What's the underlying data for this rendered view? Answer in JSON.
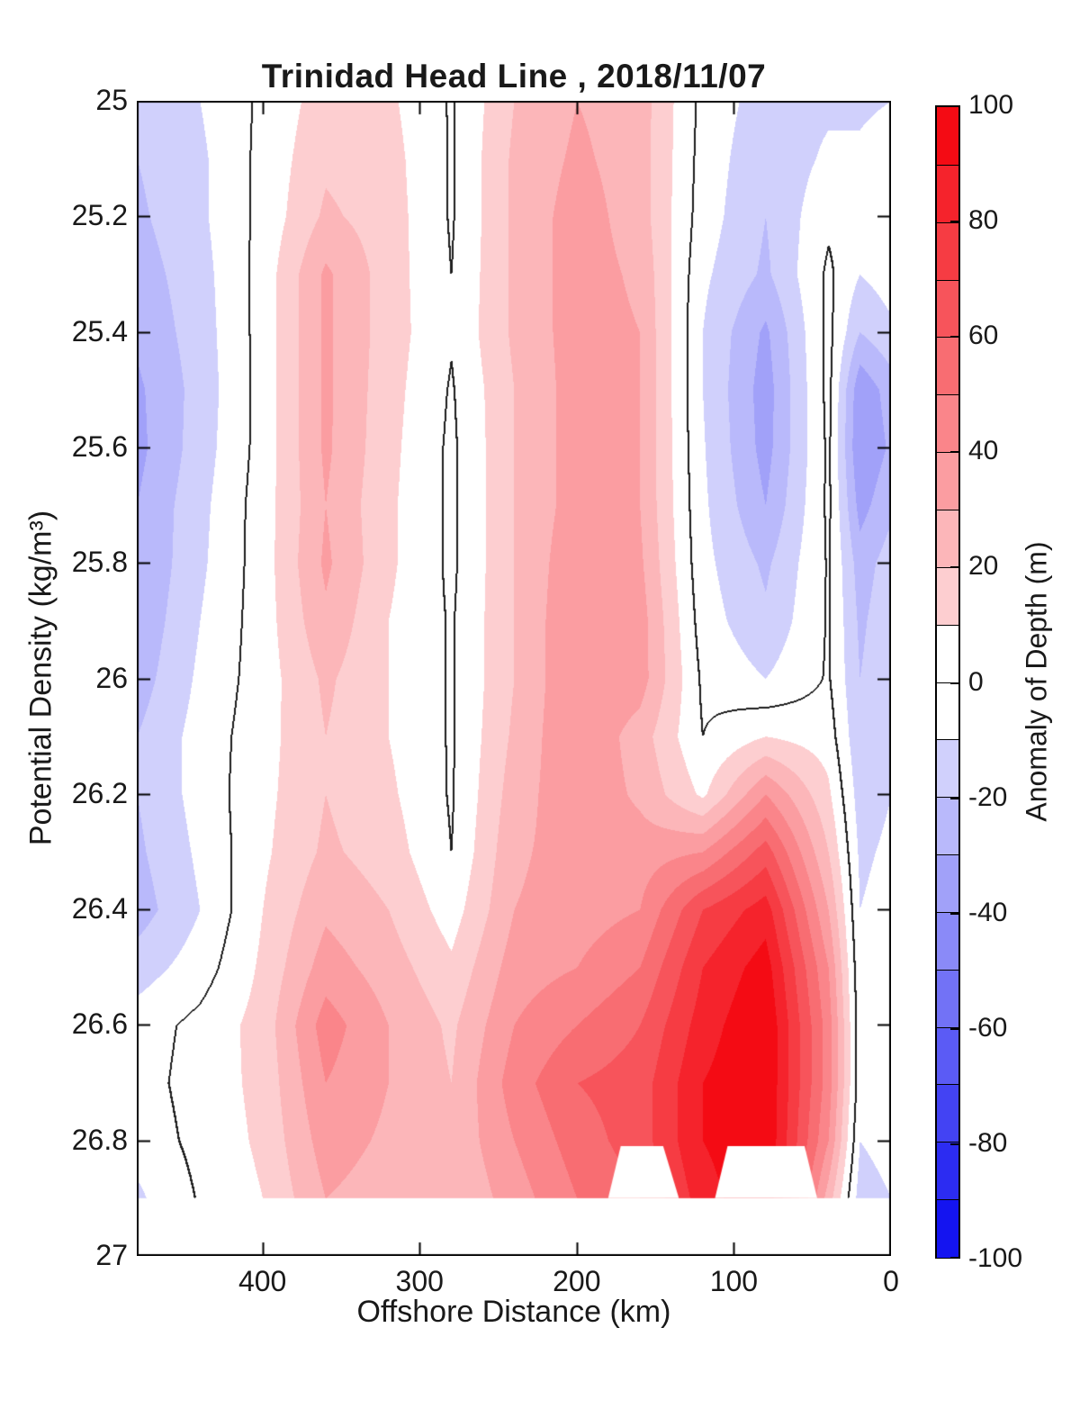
{
  "chart": {
    "title": "Trinidad Head Line , 2018/11/07",
    "x_axis": {
      "label": "Offshore Distance (km)",
      "min": 0,
      "max": 480,
      "reversed": true,
      "ticks": [
        {
          "value": 400,
          "label": "400"
        },
        {
          "value": 300,
          "label": "300"
        },
        {
          "value": 200,
          "label": "200"
        },
        {
          "value": 100,
          "label": "100"
        },
        {
          "value": 0,
          "label": "0"
        }
      ]
    },
    "y_axis": {
      "label": "Potential Density (kg/m³)",
      "min": 25,
      "max": 27,
      "increasing_downward": true,
      "ticks": [
        {
          "value": 25,
          "label": "25"
        },
        {
          "value": 25.2,
          "label": "25.2"
        },
        {
          "value": 25.4,
          "label": "25.4"
        },
        {
          "value": 25.6,
          "label": "25.6"
        },
        {
          "value": 25.8,
          "label": "25.8"
        },
        {
          "value": 26,
          "label": "26"
        },
        {
          "value": 26.2,
          "label": "26.2"
        },
        {
          "value": 26.4,
          "label": "26.4"
        },
        {
          "value": 26.6,
          "label": "26.6"
        },
        {
          "value": 26.8,
          "label": "26.8"
        },
        {
          "value": 27,
          "label": "27"
        }
      ]
    },
    "colorbar": {
      "label": "Anomaly of Depth (m)",
      "min": -100,
      "max": 100,
      "segment_step": 10,
      "positive_color": "#f40b14",
      "negative_color": "#1414f0",
      "zero_band_color": "#ffffff",
      "ticks": [
        {
          "value": 100,
          "label": "100"
        },
        {
          "value": 80,
          "label": "80"
        },
        {
          "value": 60,
          "label": "60"
        },
        {
          "value": 40,
          "label": "40"
        },
        {
          "value": 20,
          "label": "20"
        },
        {
          "value": 0,
          "label": "0"
        },
        {
          "value": -20,
          "label": "-20"
        },
        {
          "value": -40,
          "label": "-40"
        },
        {
          "value": -60,
          "label": "-60"
        },
        {
          "value": -80,
          "label": "-80"
        },
        {
          "value": -100,
          "label": "-100"
        }
      ]
    },
    "contour_lines": {
      "level": 0,
      "color": "#1e1e1e"
    }
  },
  "chart_data": {
    "type": "heatmap",
    "subtype": "filled_contour",
    "title": "Trinidad Head Line , 2018/11/07",
    "xlabel": "Offshore Distance (km)",
    "ylabel": "Potential Density (kg/m³)",
    "value_label": "Anomaly of Depth (m)",
    "band_interval": 10,
    "value_range": [
      -100,
      100
    ],
    "x_km": [
      480,
      440,
      400,
      360,
      320,
      280,
      240,
      200,
      160,
      120,
      80,
      40,
      20,
      0
    ],
    "density_levels": [
      25.0,
      25.1,
      25.2,
      25.3,
      25.4,
      25.5,
      25.6,
      25.7,
      25.8,
      25.9,
      26.0,
      26.1,
      26.2,
      26.3,
      26.4,
      26.5,
      26.6,
      26.7,
      26.8,
      26.9
    ],
    "values": [
      [
        -15,
        -10,
        2,
        15,
        12,
        -1,
        20,
        30,
        25,
        -3,
        -15,
        -12,
        -12,
        -10
      ],
      [
        -20,
        -12,
        3,
        18,
        14,
        -1,
        22,
        32,
        25,
        -4,
        -18,
        -8,
        -8,
        -4
      ],
      [
        -22,
        -12,
        3,
        22,
        15,
        -1,
        22,
        35,
        25,
        -5,
        -20,
        -2,
        -5,
        -2
      ],
      [
        -25,
        -14,
        4,
        32,
        15,
        0,
        22,
        35,
        28,
        -8,
        -22,
        2,
        -10,
        -5
      ],
      [
        -28,
        -15,
        4,
        32,
        15,
        1,
        22,
        35,
        30,
        -10,
        -32,
        3,
        -20,
        -12
      ],
      [
        -32,
        -16,
        4,
        32,
        14,
        -1,
        20,
        35,
        30,
        -10,
        -35,
        3,
        -38,
        -25
      ],
      [
        -33,
        -15,
        4,
        32,
        13,
        -2,
        20,
        35,
        30,
        -9,
        -34,
        2,
        -40,
        -28
      ],
      [
        -30,
        -13,
        5,
        30,
        12,
        -2,
        20,
        35,
        30,
        -8,
        -30,
        2,
        -34,
        -22
      ],
      [
        -30,
        -12,
        5,
        32,
        12,
        -2,
        20,
        38,
        32,
        -7,
        -22,
        1,
        -25,
        -15
      ],
      [
        -28,
        -10,
        5,
        28,
        10,
        -1,
        20,
        40,
        35,
        -5,
        -18,
        1,
        -22,
        -13
      ],
      [
        -25,
        -8,
        5,
        22,
        10,
        -1,
        20,
        40,
        35,
        -2,
        -10,
        1,
        -20,
        -12
      ],
      [
        -20,
        -6,
        6,
        20,
        10,
        -1,
        22,
        40,
        25,
        0,
        10,
        5,
        -18,
        -10
      ],
      [
        -20,
        -6,
        7,
        20,
        12,
        -1,
        25,
        38,
        28,
        8,
        40,
        12,
        -15,
        -10
      ],
      [
        -22,
        -8,
        8,
        22,
        15,
        0,
        28,
        35,
        35,
        40,
        65,
        20,
        -12,
        -8
      ],
      [
        -25,
        -10,
        10,
        28,
        20,
        5,
        30,
        35,
        40,
        70,
        85,
        30,
        -10,
        -6
      ],
      [
        -15,
        -5,
        12,
        35,
        25,
        12,
        35,
        40,
        50,
        80,
        95,
        40,
        -8,
        -5
      ],
      [
        -5,
        3,
        14,
        45,
        30,
        18,
        40,
        50,
        60,
        85,
        100,
        45,
        -6,
        -4
      ],
      [
        -4,
        4,
        13,
        40,
        30,
        20,
        45,
        60,
        65,
        90,
        100,
        45,
        -6,
        -4
      ],
      [
        -6,
        3,
        12,
        35,
        28,
        22,
        40,
        55,
        65,
        90,
        100,
        40,
        -10,
        -6
      ],
      [
        -12,
        1,
        10,
        30,
        25,
        20,
        35,
        50,
        60,
        85,
        100,
        25,
        -15,
        -10
      ]
    ],
    "missing_data": {
      "below_density": 26.9,
      "cutouts": [
        {
          "polygon_km_density": [
            [
              172,
              26.81
            ],
            [
              145,
              26.81
            ],
            [
              135,
              26.9
            ],
            [
              180,
              26.9
            ]
          ]
        },
        {
          "polygon_km_density": [
            [
              104,
              26.81
            ],
            [
              55,
              26.81
            ],
            [
              47,
              26.9
            ],
            [
              112,
              26.9
            ]
          ]
        }
      ]
    }
  }
}
